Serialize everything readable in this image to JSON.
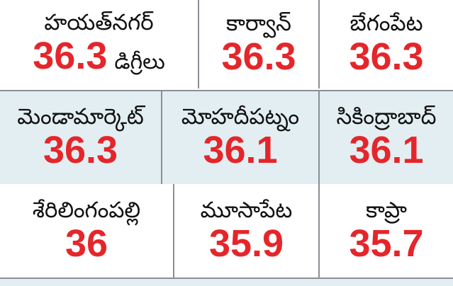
{
  "rows": [
    [
      {
        "name": "హయత్‌నగర్",
        "value": 36.3,
        "unit": "డిగ్రీలు"
      },
      {
        "name": "కార్వాన్",
        "value": 36.3
      },
      {
        "name": "బేగంపేట",
        "value": 36.3
      }
    ],
    [
      {
        "name": "మెండామార్కెట్",
        "value": 36.3
      },
      {
        "name": "మోహదీపట్నం",
        "value": 36.1
      },
      {
        "name": "సికింద్రాబాద్",
        "value": 36.1
      }
    ],
    [
      {
        "name": "శేరిలింగంపల్లి",
        "value": 36
      },
      {
        "name": "మూసాపేట",
        "value": 35.9
      },
      {
        "name": "కాప్రా",
        "value": 35.7
      }
    ]
  ]
}
